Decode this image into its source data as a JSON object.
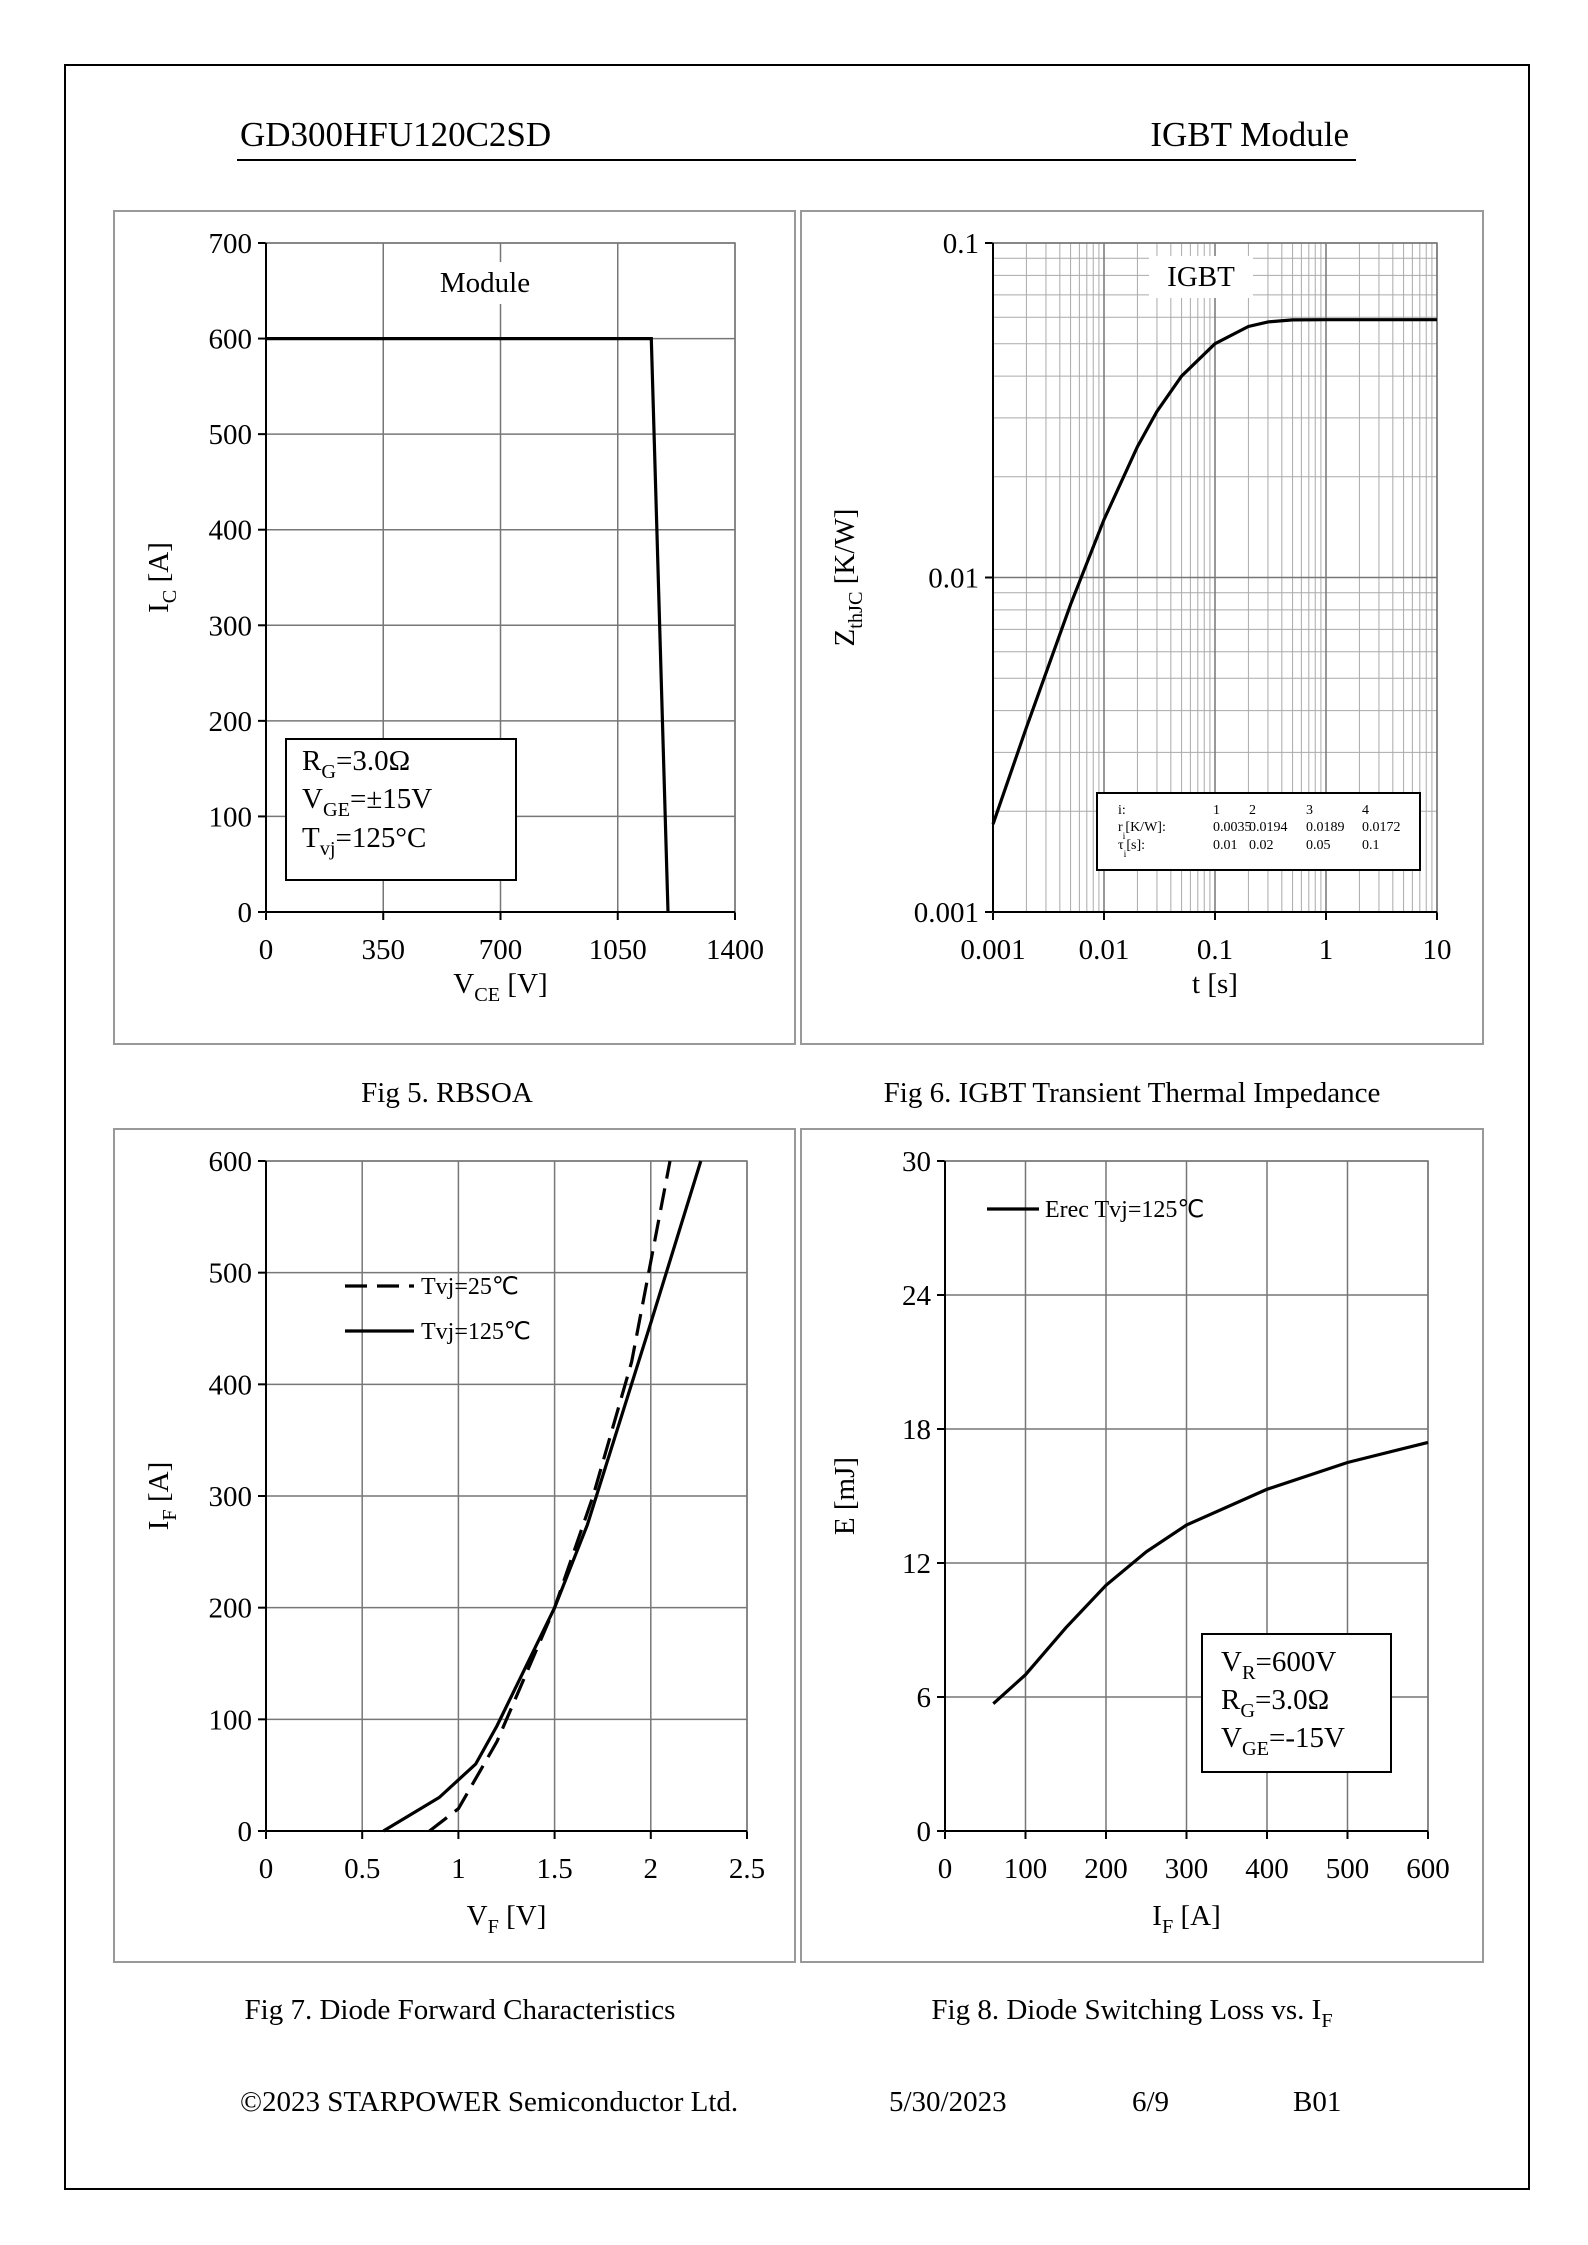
{
  "header": {
    "part": "GD300HFU120C2SD",
    "type": "IGBT Module"
  },
  "chart_data": [
    {
      "type": "line",
      "caption": [
        "Fig 5. RBSOA"
      ],
      "xlabel": [
        "V",
        "CE",
        " [V]"
      ],
      "ylabel": [
        "I",
        "C",
        " [A]"
      ],
      "xlim": [
        0,
        1400
      ],
      "xticks": [
        0,
        350,
        700,
        1050,
        1400
      ],
      "ylim": [
        0,
        700
      ],
      "yticks": [
        0,
        100,
        200,
        300,
        400,
        500,
        600,
        700
      ],
      "grid": true,
      "annotation": "Module",
      "note": [
        [
          "R",
          "G",
          "=3.0Ω"
        ],
        [
          "V",
          "GE",
          "=±15V"
        ],
        [
          "T",
          "vj",
          "=125°C"
        ]
      ],
      "series": [
        {
          "color": "#000000",
          "x": [
            0,
            1150,
            1200
          ],
          "values": [
            600,
            600,
            0
          ]
        }
      ]
    },
    {
      "type": "line",
      "caption": [
        "Fig 6. IGBT Transient Thermal Impedance"
      ],
      "xlabel": [
        "t [s]"
      ],
      "ylabel": [
        "Z",
        "thJC",
        " [K/W]"
      ],
      "xscale": "log",
      "yscale": "log",
      "xlim": [
        0.001,
        10
      ],
      "xticks": [
        0.001,
        0.01,
        0.1,
        1,
        10
      ],
      "ylim": [
        0.001,
        0.1
      ],
      "yticks": [
        0.001,
        0.01,
        0.1
      ],
      "grid": true,
      "annotation": "IGBT",
      "table": [
        [
          [
            "i:"
          ],
          "1",
          "2",
          "3",
          "4"
        ],
        [
          [
            "r",
            "i",
            "[K/W]:"
          ],
          "0.0035",
          "0.0194",
          "0.0189",
          "0.0172"
        ],
        [
          [
            "τ",
            "i",
            "[s]:"
          ],
          "0.01",
          "0.02",
          "0.05",
          "0.1"
        ]
      ],
      "series": [
        {
          "color": "#000000",
          "x": [
            0.001,
            0.002,
            0.005,
            0.01,
            0.02,
            0.03,
            0.05,
            0.1,
            0.2,
            0.3,
            0.5,
            1,
            2,
            5,
            10
          ],
          "values": [
            0.00183,
            0.00356,
            0.00831,
            0.0149,
            0.0246,
            0.0314,
            0.04,
            0.05,
            0.0563,
            0.0581,
            0.0589,
            0.059,
            0.059,
            0.059,
            0.059
          ]
        }
      ]
    },
    {
      "type": "line",
      "caption": [
        "Fig 7. Diode Forward Characteristics"
      ],
      "xlabel": [
        "V",
        "F",
        "  [V]"
      ],
      "ylabel": [
        "I",
        "F",
        " [A]"
      ],
      "xlim": [
        0,
        2.5
      ],
      "xticks": [
        0,
        0.5,
        1,
        1.5,
        2,
        2.5
      ],
      "ylim": [
        0,
        600
      ],
      "yticks": [
        0,
        100,
        200,
        300,
        400,
        500,
        600
      ],
      "grid": true,
      "series": [
        {
          "name": "Tvj=25℃",
          "color": "#000000",
          "dashed": true,
          "x": [
            0.85,
            1.0,
            1.2,
            1.5,
            1.7,
            1.9,
            2.1
          ],
          "values": [
            0,
            20,
            80,
            200,
            300,
            420,
            600
          ]
        },
        {
          "name": "Tvj=125℃",
          "color": "#000000",
          "x": [
            0.61,
            0.9,
            1.09,
            1.2,
            1.5,
            1.67,
            2.0,
            2.26
          ],
          "values": [
            0,
            30,
            60,
            94,
            200,
            274,
            455,
            600
          ]
        }
      ]
    },
    {
      "type": "line",
      "caption": [
        "Fig 8. Diode Switching Loss vs. I",
        "F"
      ],
      "xlabel": [
        "I",
        "F",
        " [A]"
      ],
      "ylabel": [
        "E [mJ]"
      ],
      "xlim": [
        0,
        600
      ],
      "xticks": [
        0,
        100,
        200,
        300,
        400,
        500,
        600
      ],
      "ylim": [
        0,
        30
      ],
      "yticks": [
        0,
        6,
        12,
        18,
        24,
        30
      ],
      "grid": true,
      "note": [
        [
          "V",
          "R",
          "=600V"
        ],
        [
          "R",
          "G",
          "=3.0Ω"
        ],
        [
          "V",
          "GE",
          "=-15V"
        ]
      ],
      "series": [
        {
          "name": "Erec Tvj=125℃",
          "color": "#000000",
          "x": [
            60,
            100,
            150,
            200,
            250,
            300,
            400,
            500,
            600
          ],
          "values": [
            5.7,
            7.0,
            9.1,
            11.0,
            12.5,
            13.7,
            15.3,
            16.5,
            17.4
          ]
        }
      ]
    }
  ],
  "footer": {
    "copyright": "©2023 STARPOWER Semiconductor Ltd.",
    "date": "5/30/2023",
    "page": "6/9",
    "revision": "B01"
  }
}
